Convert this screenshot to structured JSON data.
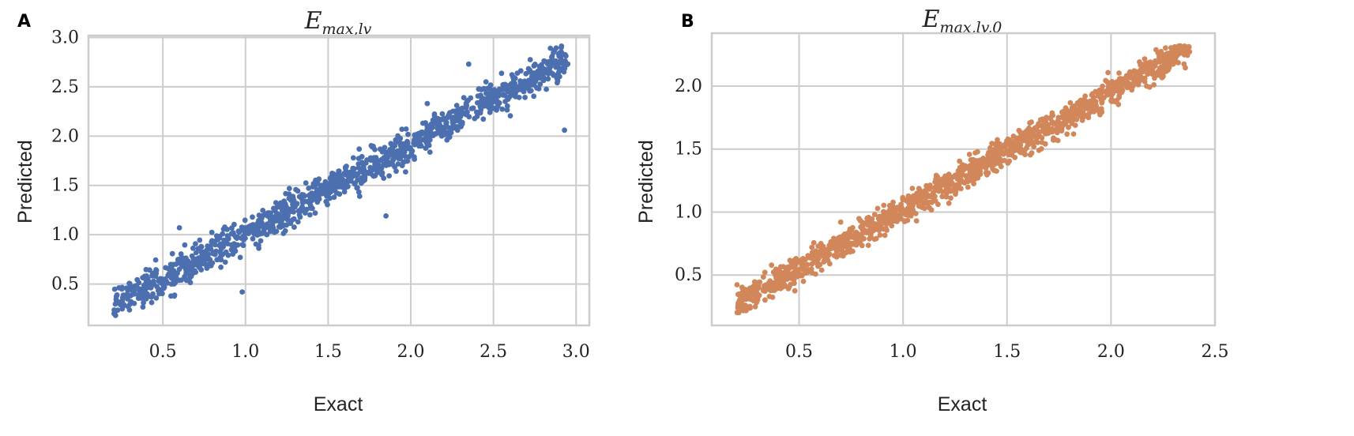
{
  "colors": {
    "series_a": "#4c6faf",
    "series_b": "#d2875a",
    "grid": "#cccccc"
  },
  "chart_data": [
    {
      "type": "scatter",
      "panel_label": "A",
      "title_main": "E",
      "title_sub": "max,lv",
      "xlabel": "Exact",
      "ylabel": "Predicted",
      "xlim": [
        0.05,
        3.08
      ],
      "ylim": [
        0.08,
        3.02
      ],
      "xticks": [
        0.5,
        1.0,
        1.5,
        2.0,
        2.5,
        3.0
      ],
      "yticks": [
        0.5,
        1.0,
        1.5,
        2.0,
        2.5,
        3.0
      ],
      "xtick_labels": [
        "0.5",
        "1.0",
        "1.5",
        "2.0",
        "2.5",
        "3.0"
      ],
      "ytick_labels": [
        "0.5",
        "1.0",
        "1.5",
        "2.0",
        "2.5",
        "3.0"
      ],
      "grid": true,
      "n_points": 1200,
      "x_range": [
        0.2,
        2.95
      ],
      "trend": {
        "slope": 0.91,
        "intercept": 0.1,
        "noise_sd": 0.085
      },
      "outliers": [
        [
          2.93,
          2.06
        ],
        [
          0.98,
          0.42
        ],
        [
          1.85,
          1.19
        ],
        [
          2.35,
          2.73
        ],
        [
          0.6,
          1.07
        ],
        [
          2.1,
          2.33
        ]
      ]
    },
    {
      "type": "scatter",
      "panel_label": "B",
      "title_main": "E",
      "title_sub": "max,lv,0",
      "xlabel": "Exact",
      "ylabel": "Predicted",
      "xlim": [
        0.08,
        2.5
      ],
      "ylim": [
        0.1,
        2.42
      ],
      "xticks": [
        0.5,
        1.0,
        1.5,
        2.0,
        2.5
      ],
      "yticks": [
        0.5,
        1.0,
        1.5,
        2.0
      ],
      "xtick_labels": [
        "0.5",
        "1.0",
        "1.5",
        "2.0",
        "2.5"
      ],
      "ytick_labels": [
        "0.5",
        "1.0",
        "1.5",
        "2.0"
      ],
      "grid": true,
      "n_points": 1400,
      "x_range": [
        0.2,
        2.38
      ],
      "trend": {
        "slope": 0.94,
        "intercept": 0.08,
        "noise_sd": 0.055
      },
      "outliers": [
        [
          2.1,
          1.97
        ],
        [
          1.82,
          1.62
        ],
        [
          2.25,
          2.08
        ],
        [
          0.7,
          0.92
        ]
      ]
    }
  ]
}
